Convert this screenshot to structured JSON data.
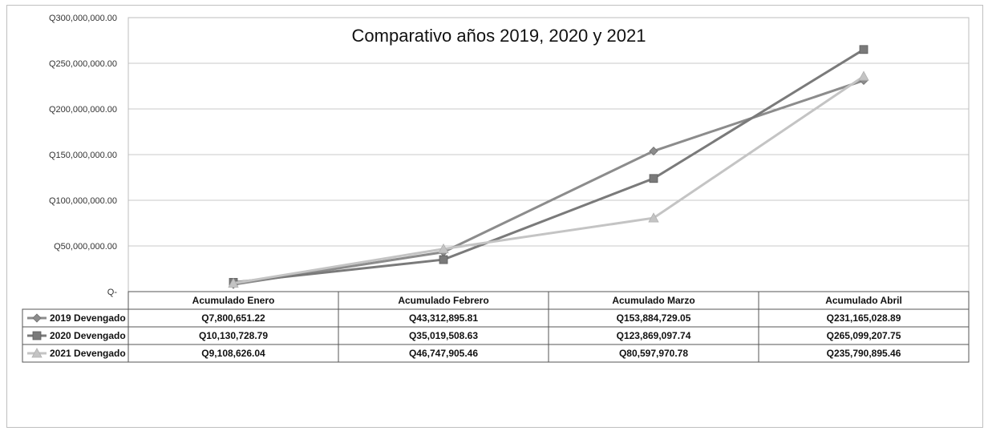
{
  "chart_data": {
    "type": "line",
    "title": "Comparativo años  2019, 2020 y 2021",
    "categories": [
      "Acumulado Enero",
      "Acumulado Febrero",
      "Acumulado Marzo",
      "Acumulado Abril"
    ],
    "series": [
      {
        "name": "2019 Devengado",
        "values": [
          7800651.22,
          43312895.81,
          153884729.05,
          231165028.89
        ],
        "labels": [
          "Q7,800,651.22",
          "Q43,312,895.81",
          "Q153,884,729.05",
          "Q231,165,028.89"
        ],
        "color": "#8c8c8c",
        "marker": "diamond"
      },
      {
        "name": "2020 Devengado",
        "values": [
          10130728.79,
          35019508.63,
          123869097.74,
          265099207.75
        ],
        "labels": [
          "Q10,130,728.79",
          "Q35,019,508.63",
          "Q123,869,097.74",
          "Q265,099,207.75"
        ],
        "color": "#7a7a7a",
        "marker": "square"
      },
      {
        "name": "2021 Devengado",
        "values": [
          9108626.04,
          46747905.46,
          80597970.78,
          235790895.46
        ],
        "labels": [
          "Q9,108,626.04",
          "Q46,747,905.46",
          "Q80,597,970.78",
          "Q235,790,895.46"
        ],
        "color": "#c4c4c4",
        "marker": "triangle"
      }
    ],
    "ylim": [
      0,
      300000000
    ],
    "yticks": [
      0,
      50000000,
      100000000,
      150000000,
      200000000,
      250000000,
      300000000
    ],
    "ytick_labels": [
      "Q-",
      "Q50,000,000.00",
      "Q100,000,000.00",
      "Q150,000,000.00",
      "Q200,000,000.00",
      "Q250,000,000.00",
      "Q300,000,000.00"
    ],
    "grid": true,
    "legend": "data-table"
  }
}
